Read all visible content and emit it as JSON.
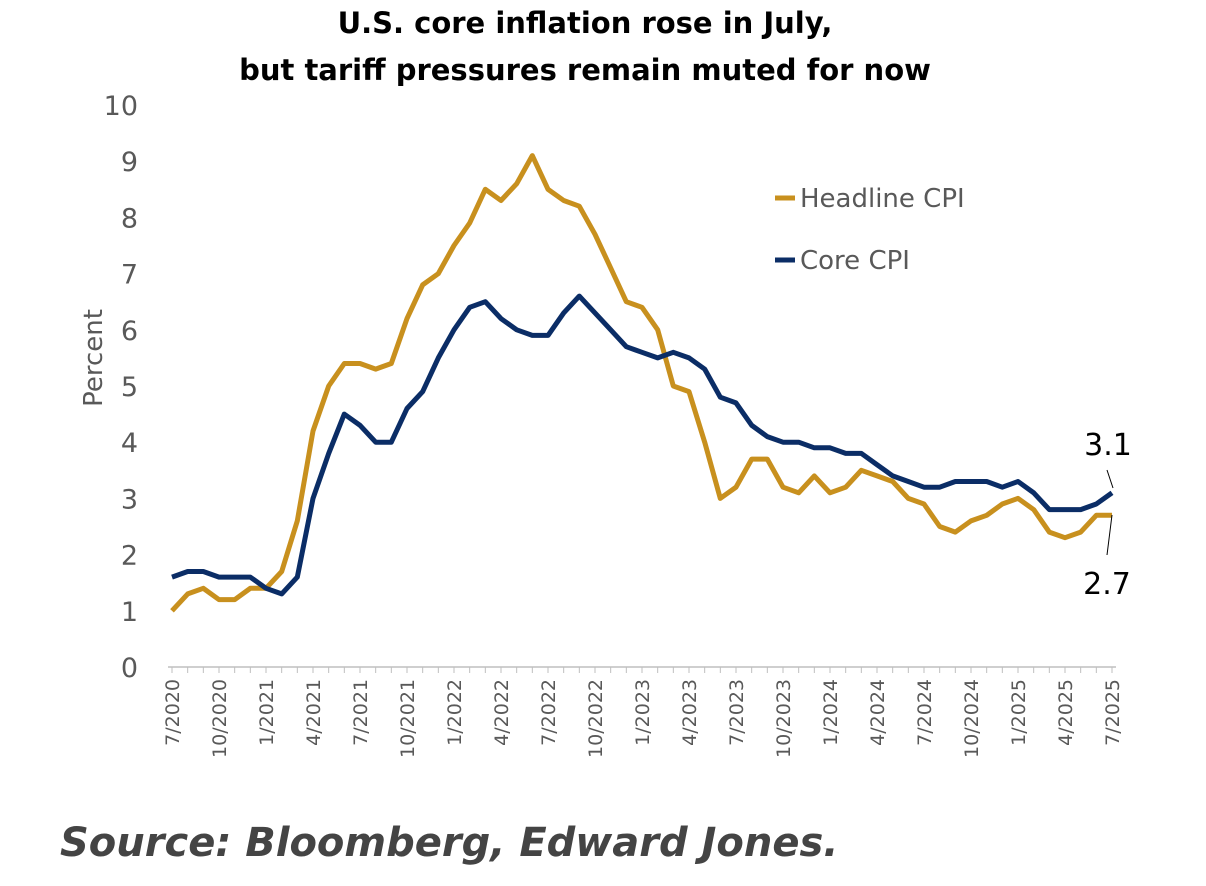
{
  "chart_data": {
    "type": "line",
    "title": [
      "U.S. core inflation rose in July,",
      "but tariff pressures remain muted for now"
    ],
    "xlabel": "",
    "ylabel": "Percent",
    "ylim": [
      0,
      10
    ],
    "yticks": [
      "0",
      "1",
      "2",
      "3",
      "4",
      "5",
      "6",
      "7",
      "8",
      "9",
      "10"
    ],
    "xtick_labels": [
      "7/2020",
      "10/2020",
      "1/2021",
      "4/2021",
      "7/2021",
      "10/2021",
      "1/2022",
      "4/2022",
      "7/2022",
      "10/2022",
      "1/2023",
      "4/2023",
      "7/2023",
      "10/2023",
      "1/2024",
      "4/2024",
      "7/2024",
      "10/2024",
      "1/2025",
      "4/2025",
      "7/2025"
    ],
    "x_start": "7/2020",
    "x_end": "7/2025",
    "grid": false,
    "legend_position": "top-right",
    "series": [
      {
        "name": "Headline CPI",
        "color": "#C8901E",
        "values": [
          1.0,
          1.3,
          1.4,
          1.2,
          1.2,
          1.4,
          1.4,
          1.7,
          2.6,
          4.2,
          5.0,
          5.4,
          5.4,
          5.3,
          5.4,
          6.2,
          6.8,
          7.0,
          7.5,
          7.9,
          8.5,
          8.3,
          8.6,
          9.1,
          8.5,
          8.3,
          8.2,
          7.7,
          7.1,
          6.5,
          6.4,
          6.0,
          5.0,
          4.9,
          4.0,
          3.0,
          3.2,
          3.7,
          3.7,
          3.2,
          3.1,
          3.4,
          3.1,
          3.2,
          3.5,
          3.4,
          3.3,
          3.0,
          2.9,
          2.5,
          2.4,
          2.6,
          2.7,
          2.9,
          3.0,
          2.8,
          2.4,
          2.3,
          2.4,
          2.7,
          2.7
        ]
      },
      {
        "name": "Core CPI",
        "color": "#0B2D66",
        "values": [
          1.6,
          1.7,
          1.7,
          1.6,
          1.6,
          1.6,
          1.4,
          1.3,
          1.6,
          3.0,
          3.8,
          4.5,
          4.3,
          4.0,
          4.0,
          4.6,
          4.9,
          5.5,
          6.0,
          6.4,
          6.5,
          6.2,
          6.0,
          5.9,
          5.9,
          6.3,
          6.6,
          6.3,
          6.0,
          5.7,
          5.6,
          5.5,
          5.6,
          5.5,
          5.3,
          4.8,
          4.7,
          4.3,
          4.1,
          4.0,
          4.0,
          3.9,
          3.9,
          3.8,
          3.8,
          3.6,
          3.4,
          3.3,
          3.2,
          3.2,
          3.3,
          3.3,
          3.3,
          3.2,
          3.3,
          3.1,
          2.8,
          2.8,
          2.8,
          2.9,
          3.1
        ]
      }
    ],
    "annotations": [
      {
        "text": "3.1",
        "series": "Core CPI",
        "at": "7/2025"
      },
      {
        "text": "2.7",
        "series": "Headline CPI",
        "at": "7/2025"
      }
    ]
  },
  "source": "Source: Bloomberg, Edward Jones."
}
